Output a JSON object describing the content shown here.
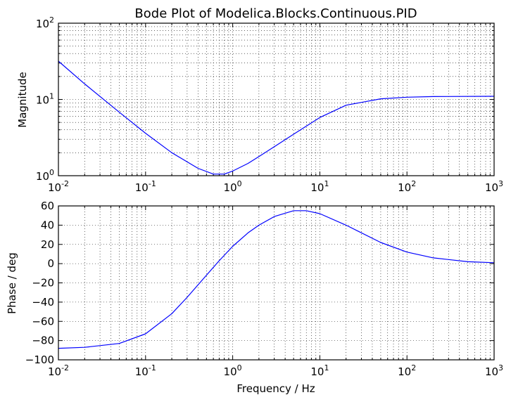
{
  "chart_data": [
    {
      "type": "line",
      "title": "Bode Plot of Modelica.Blocks.Continuous.PID",
      "xlabel": "",
      "ylabel": "Magnitude",
      "xscale": "log",
      "yscale": "log",
      "xlim": [
        0.01,
        1000
      ],
      "ylim": [
        1,
        100
      ],
      "grid": true,
      "line_color": "#0000ff",
      "x_ticks": [
        {
          "base": "10",
          "exp": "-2"
        },
        {
          "base": "10",
          "exp": "-1"
        },
        {
          "base": "10",
          "exp": "0"
        },
        {
          "base": "10",
          "exp": "1"
        },
        {
          "base": "10",
          "exp": "2"
        },
        {
          "base": "10",
          "exp": "3"
        }
      ],
      "y_ticks": [
        {
          "base": "10",
          "exp": "0"
        },
        {
          "base": "10",
          "exp": "1"
        },
        {
          "base": "10",
          "exp": "2"
        }
      ],
      "series": [
        {
          "x": [
            0.01,
            0.02,
            0.05,
            0.1,
            0.2,
            0.4,
            0.6,
            0.8,
            1,
            1.5,
            2,
            3,
            5,
            10,
            20,
            50,
            100,
            200,
            1000
          ],
          "y": [
            31.8,
            16,
            6.8,
            3.6,
            2.0,
            1.25,
            1.05,
            1.05,
            1.15,
            1.45,
            1.78,
            2.4,
            3.5,
            5.8,
            8.4,
            10.2,
            10.7,
            10.9,
            11.0
          ]
        }
      ]
    },
    {
      "type": "line",
      "title": "",
      "xlabel": "Frequency / Hz",
      "ylabel": "Phase / deg",
      "xscale": "log",
      "yscale": "linear",
      "xlim": [
        0.01,
        1000
      ],
      "ylim": [
        -100,
        60
      ],
      "grid": true,
      "line_color": "#0000ff",
      "x_ticks": [
        {
          "base": "10",
          "exp": "-2"
        },
        {
          "base": "10",
          "exp": "-1"
        },
        {
          "base": "10",
          "exp": "0"
        },
        {
          "base": "10",
          "exp": "1"
        },
        {
          "base": "10",
          "exp": "2"
        },
        {
          "base": "10",
          "exp": "3"
        }
      ],
      "y_ticks": [
        "60",
        "40",
        "20",
        "0",
        "−20",
        "−40",
        "−60",
        "−80",
        "−100"
      ],
      "series": [
        {
          "x": [
            0.01,
            0.02,
            0.05,
            0.1,
            0.2,
            0.3,
            0.5,
            0.7,
            1,
            1.5,
            2,
            3,
            5,
            7,
            10,
            20,
            50,
            100,
            200,
            500,
            1000
          ],
          "y": [
            -88,
            -87,
            -83,
            -73,
            -52,
            -35,
            -12,
            3,
            18,
            32,
            40,
            49,
            55,
            55,
            52,
            40,
            22,
            12,
            6,
            2,
            1
          ]
        }
      ]
    }
  ]
}
